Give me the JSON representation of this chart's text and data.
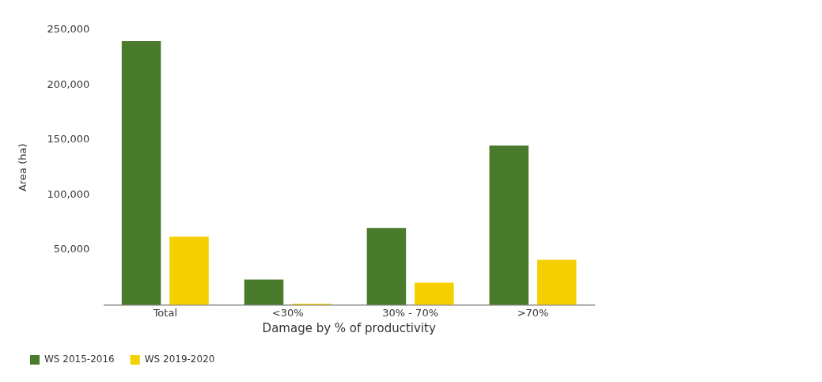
{
  "chart_data": {
    "type": "bar",
    "xlabel": "Damage by % of productivity",
    "ylabel": "Area (ha)",
    "categories": [
      "Total",
      "<30%",
      "30% - 70%",
      ">70%"
    ],
    "series": [
      {
        "name": "WS 2015-2016",
        "color": "#4a7a2c",
        "values": [
          240000,
          23000,
          70000,
          145000
        ]
      },
      {
        "name": "WS 2019-2020",
        "color": "#f5d000",
        "values": [
          62000,
          1000,
          20000,
          41000
        ]
      }
    ],
    "ylim": [
      0,
      250000
    ],
    "yticks": [
      {
        "value": 50000,
        "label": "50,000"
      },
      {
        "value": 100000,
        "label": "100,000"
      },
      {
        "value": 150000,
        "label": "150,000"
      },
      {
        "value": 200000,
        "label": "200,000"
      },
      {
        "value": 250000,
        "label": "250,000"
      }
    ],
    "grid": false,
    "legend": "bottom"
  }
}
